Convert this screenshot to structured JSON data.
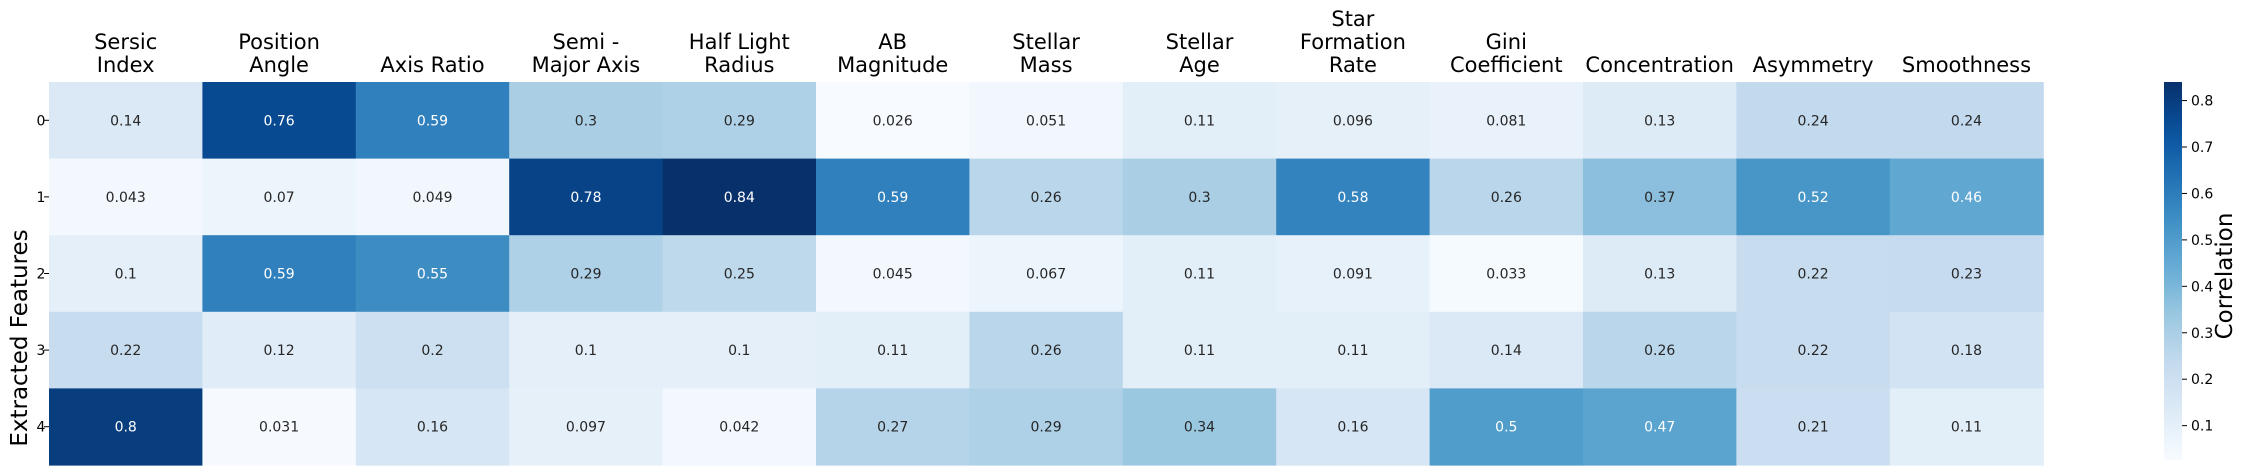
{
  "chart_data": {
    "type": "heatmap",
    "columns": [
      [
        "Sersic",
        "Index"
      ],
      [
        "Position",
        "Angle"
      ],
      [
        "Axis Ratio"
      ],
      [
        "Semi -",
        "Major Axis"
      ],
      [
        "Half Light",
        "Radius"
      ],
      [
        "AB",
        "Magnitude"
      ],
      [
        "Stellar",
        "Mass"
      ],
      [
        "Stellar",
        "Age"
      ],
      [
        "Star",
        "Formation",
        "Rate"
      ],
      [
        "Gini",
        "Coefficient"
      ],
      [
        "Concentration"
      ],
      [
        "Asymmetry"
      ],
      [
        "Smoothness"
      ]
    ],
    "rows": [
      "0",
      "1",
      "2",
      "3",
      "4"
    ],
    "ylabel": "Extracted Features",
    "values": [
      [
        "0.14",
        "0.76",
        "0.59",
        "0.3",
        "0.29",
        "0.026",
        "0.051",
        "0.11",
        "0.096",
        "0.081",
        "0.13",
        "0.24",
        "0.24"
      ],
      [
        "0.043",
        "0.07",
        "0.049",
        "0.78",
        "0.84",
        "0.59",
        "0.26",
        "0.3",
        "0.58",
        "0.26",
        "0.37",
        "0.52",
        "0.46"
      ],
      [
        "0.1",
        "0.59",
        "0.55",
        "0.29",
        "0.25",
        "0.045",
        "0.067",
        "0.11",
        "0.091",
        "0.033",
        "0.13",
        "0.22",
        "0.23"
      ],
      [
        "0.22",
        "0.12",
        "0.2",
        "0.1",
        "0.1",
        "0.11",
        "0.26",
        "0.11",
        "0.11",
        "0.14",
        "0.26",
        "0.22",
        "0.18"
      ],
      [
        "0.8",
        "0.031",
        "0.16",
        "0.097",
        "0.042",
        "0.27",
        "0.29",
        "0.34",
        "0.16",
        "0.5",
        "0.47",
        "0.21",
        "0.11"
      ]
    ],
    "colorbar": {
      "label": "Correlation",
      "range": [
        0.026,
        0.84
      ],
      "ticks": [
        "0.1",
        "0.2",
        "0.3",
        "0.4",
        "0.5",
        "0.6",
        "0.7",
        "0.8"
      ],
      "colormap": "Blues"
    }
  }
}
